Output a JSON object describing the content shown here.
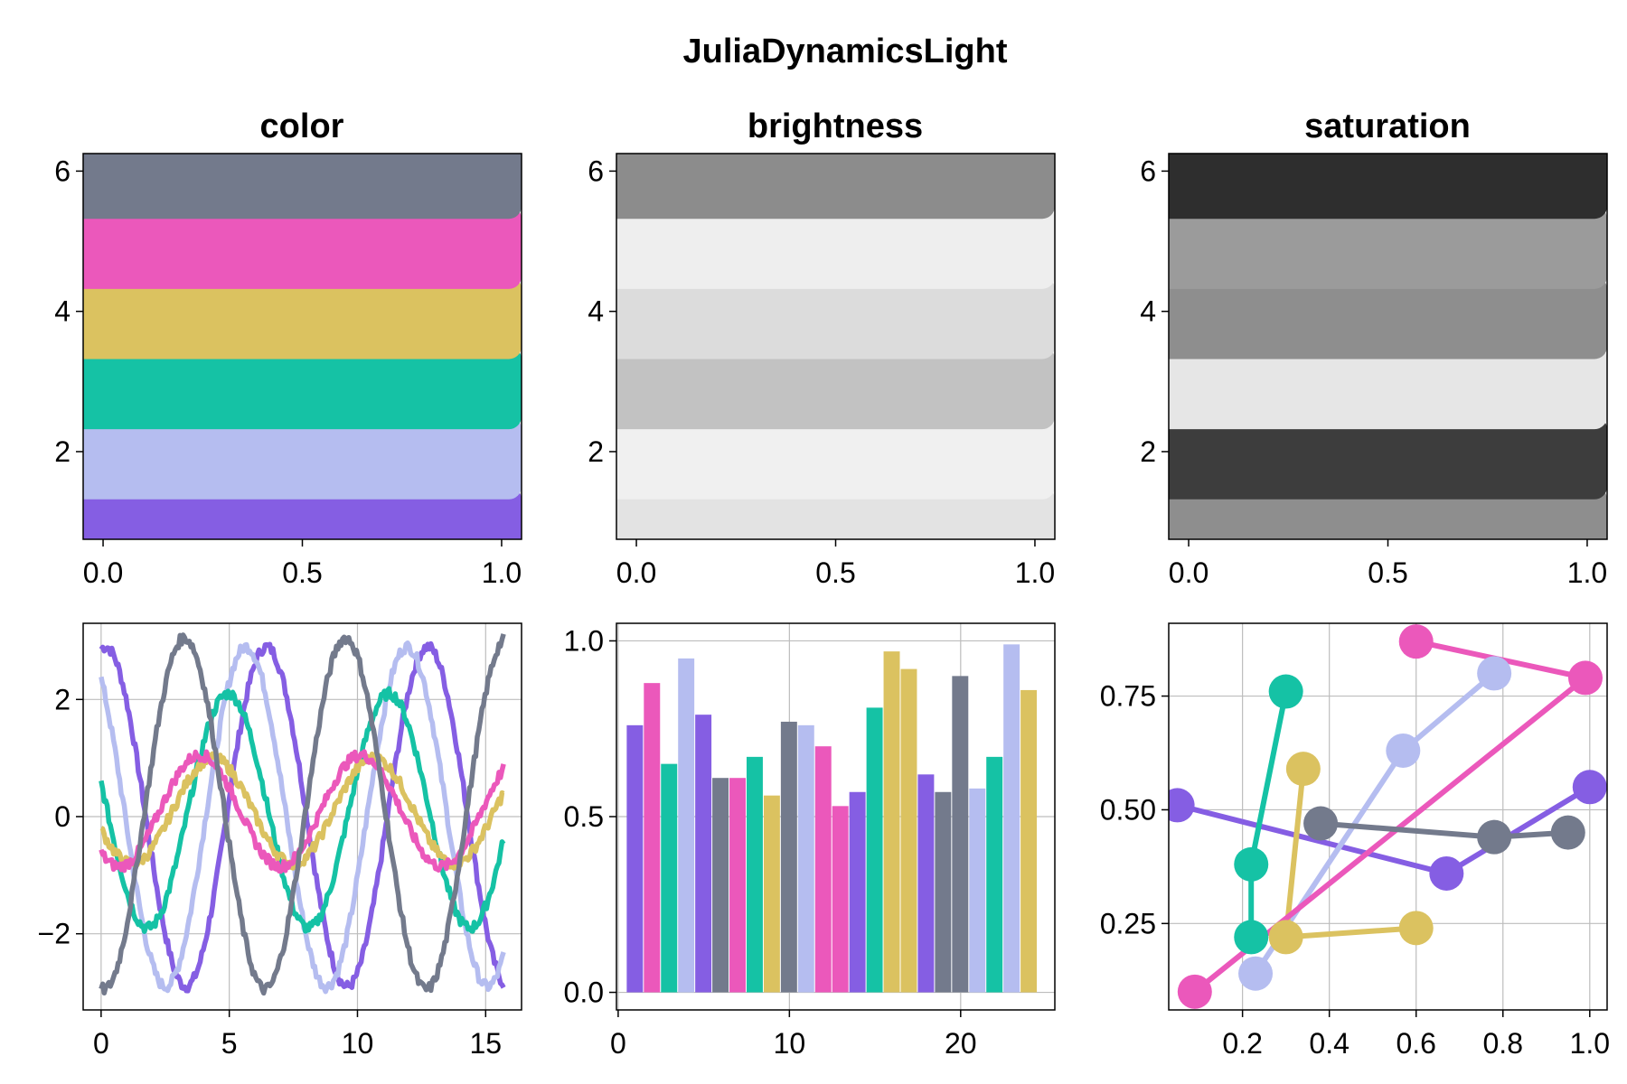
{
  "figure": {
    "title": "JuliaDynamicsLight",
    "palette": [
      "#855ee3",
      "#b5bdf0",
      "#15c2a5",
      "#dbc260",
      "#eb58bb",
      "#737a8c"
    ]
  },
  "chart_data": [
    {
      "type": "bar",
      "title": "color",
      "orientation": "horizontal-bands",
      "bands": [
        {
          "y": 1,
          "color": "#855ee3"
        },
        {
          "y": 2,
          "color": "#b5bdf0"
        },
        {
          "y": 3,
          "color": "#15c2a5"
        },
        {
          "y": 4,
          "color": "#dbc260"
        },
        {
          "y": 5,
          "color": "#eb58bb"
        },
        {
          "y": 6,
          "color": "#737a8c"
        }
      ],
      "xlim": [
        -0.05,
        1.05
      ],
      "ylim": [
        0.75,
        6.25
      ],
      "xticks": [
        "0.0",
        "0.5",
        "1.0"
      ],
      "xtick_values": [
        0,
        0.5,
        1
      ],
      "yticks": [
        "2",
        "4",
        "6"
      ],
      "ytick_values": [
        2,
        4,
        6
      ],
      "grid": false
    },
    {
      "type": "bar",
      "title": "brightness",
      "orientation": "horizontal-bands",
      "bands": [
        {
          "y": 1,
          "color": "#e3e3e3"
        },
        {
          "y": 2,
          "color": "#f0f0f0"
        },
        {
          "y": 3,
          "color": "#c2c2c2"
        },
        {
          "y": 4,
          "color": "#dcdcdc"
        },
        {
          "y": 5,
          "color": "#eeeeee"
        },
        {
          "y": 6,
          "color": "#8c8c8c"
        }
      ],
      "xlim": [
        -0.05,
        1.05
      ],
      "ylim": [
        0.75,
        6.25
      ],
      "xticks": [
        "0.0",
        "0.5",
        "1.0"
      ],
      "xtick_values": [
        0,
        0.5,
        1
      ],
      "yticks": [
        "2",
        "4",
        "6"
      ],
      "ytick_values": [
        2,
        4,
        6
      ],
      "grid": false
    },
    {
      "type": "bar",
      "title": "saturation",
      "orientation": "horizontal-bands",
      "bands": [
        {
          "y": 1,
          "color": "#8e8e8e"
        },
        {
          "y": 2,
          "color": "#3d3d3d"
        },
        {
          "y": 3,
          "color": "#e6e6e6"
        },
        {
          "y": 4,
          "color": "#8e8e8e"
        },
        {
          "y": 5,
          "color": "#9b9b9b"
        },
        {
          "y": 6,
          "color": "#2e2e2e"
        }
      ],
      "xlim": [
        -0.05,
        1.05
      ],
      "ylim": [
        0.75,
        6.25
      ],
      "xticks": [
        "0.0",
        "0.5",
        "1.0"
      ],
      "xtick_values": [
        0,
        0.5,
        1
      ],
      "yticks": [
        "2",
        "4",
        "6"
      ],
      "ytick_values": [
        2,
        4,
        6
      ],
      "grid": false
    },
    {
      "type": "line",
      "title": "",
      "x_range": [
        0,
        15.7
      ],
      "series": [
        {
          "color": "#855ee3",
          "amplitude": 2.9,
          "phase": 1.4,
          "offset": 0.0
        },
        {
          "color": "#b5bdf0",
          "amplitude": 2.9,
          "phase": 2.2,
          "offset": 0.0
        },
        {
          "color": "#15c2a5",
          "amplitude": 2.0,
          "phase": 2.9,
          "offset": 0.1
        },
        {
          "color": "#dbc260",
          "amplitude": 0.9,
          "phase": 3.5,
          "offset": 0.1
        },
        {
          "color": "#eb58bb",
          "amplitude": 0.95,
          "phase": 4.0,
          "offset": 0.1
        },
        {
          "color": "#737a8c",
          "amplitude": 3.0,
          "phase": 4.6,
          "offset": 0.05
        }
      ],
      "xlim": [
        -0.7,
        16.4
      ],
      "ylim": [
        -3.3,
        3.3
      ],
      "xticks": [
        "0",
        "5",
        "10",
        "15"
      ],
      "xtick_values": [
        0,
        5,
        10,
        15
      ],
      "yticks": [
        "−2",
        "0",
        "2"
      ],
      "ytick_values": [
        -2,
        0,
        2
      ],
      "grid": true
    },
    {
      "type": "bar",
      "title": "",
      "categories": [
        1,
        2,
        3,
        4,
        5,
        6,
        7,
        8,
        9,
        10,
        11,
        12,
        13,
        14,
        15,
        16,
        17,
        18,
        19,
        20,
        21,
        22,
        23,
        24
      ],
      "values": [
        0.76,
        0.88,
        0.65,
        0.95,
        0.79,
        0.61,
        0.61,
        0.67,
        0.56,
        0.77,
        0.76,
        0.7,
        0.53,
        0.57,
        0.81,
        0.97,
        0.92,
        0.62,
        0.57,
        0.9,
        0.58,
        0.67,
        0.99,
        0.86
      ],
      "bar_colors_cycle": [
        "#855ee3",
        "#eb58bb",
        "#15c2a5",
        "#b5bdf0",
        "#855ee3",
        "#737a8c"
      ],
      "xlim": [
        -0.1,
        25.5
      ],
      "ylim": [
        -0.05,
        1.05
      ],
      "xticks": [
        "0",
        "10",
        "20"
      ],
      "xtick_values": [
        0,
        10,
        20
      ],
      "yticks": [
        "0.0",
        "0.5",
        "1.0"
      ],
      "ytick_values": [
        0,
        0.5,
        1.0
      ],
      "grid": true
    },
    {
      "type": "scatter",
      "title": "",
      "series": [
        {
          "color": "#855ee3",
          "points": [
            [
              0.05,
              0.51
            ],
            [
              0.67,
              0.36
            ],
            [
              1.0,
              0.55
            ]
          ]
        },
        {
          "color": "#b5bdf0",
          "points": [
            [
              0.23,
              0.14
            ],
            [
              0.57,
              0.63
            ],
            [
              0.78,
              0.8
            ]
          ]
        },
        {
          "color": "#15c2a5",
          "points": [
            [
              0.3,
              0.76
            ],
            [
              0.22,
              0.38
            ],
            [
              0.22,
              0.22
            ]
          ]
        },
        {
          "color": "#dbc260",
          "points": [
            [
              0.34,
              0.59
            ],
            [
              0.3,
              0.22
            ],
            [
              0.6,
              0.24
            ]
          ]
        },
        {
          "color": "#eb58bb",
          "points": [
            [
              0.09,
              0.1
            ],
            [
              0.99,
              0.79
            ],
            [
              0.6,
              0.87
            ]
          ]
        },
        {
          "color": "#737a8c",
          "points": [
            [
              0.38,
              0.47
            ],
            [
              0.78,
              0.44
            ],
            [
              0.95,
              0.45
            ]
          ]
        }
      ],
      "xlim": [
        0.03,
        1.04
      ],
      "ylim": [
        0.06,
        0.91
      ],
      "xticks": [
        "0.2",
        "0.4",
        "0.6",
        "0.8",
        "1.0"
      ],
      "xtick_values": [
        0.2,
        0.4,
        0.6,
        0.8,
        1.0
      ],
      "yticks": [
        "0.25",
        "0.50",
        "0.75"
      ],
      "ytick_values": [
        0.25,
        0.5,
        0.75
      ],
      "grid": true
    }
  ]
}
